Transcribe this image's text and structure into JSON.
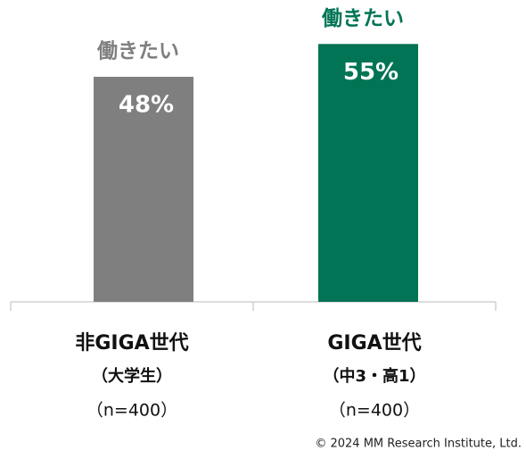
{
  "chart_data": {
    "type": "bar",
    "categories": [
      "非GIGA世代",
      "GIGA世代"
    ],
    "category_sublabels": [
      "（大学生）",
      "（中3・高1）"
    ],
    "sample_sizes": [
      "（n=400）",
      "（n=400）"
    ],
    "values": [
      48,
      55
    ],
    "value_labels": [
      "48%",
      "55%"
    ],
    "annotations": [
      "働きたい",
      "働きたい"
    ],
    "colors": [
      "#7f7f7f",
      "#007455"
    ],
    "source": "© 2024 MM Research Institute, Ltd."
  }
}
